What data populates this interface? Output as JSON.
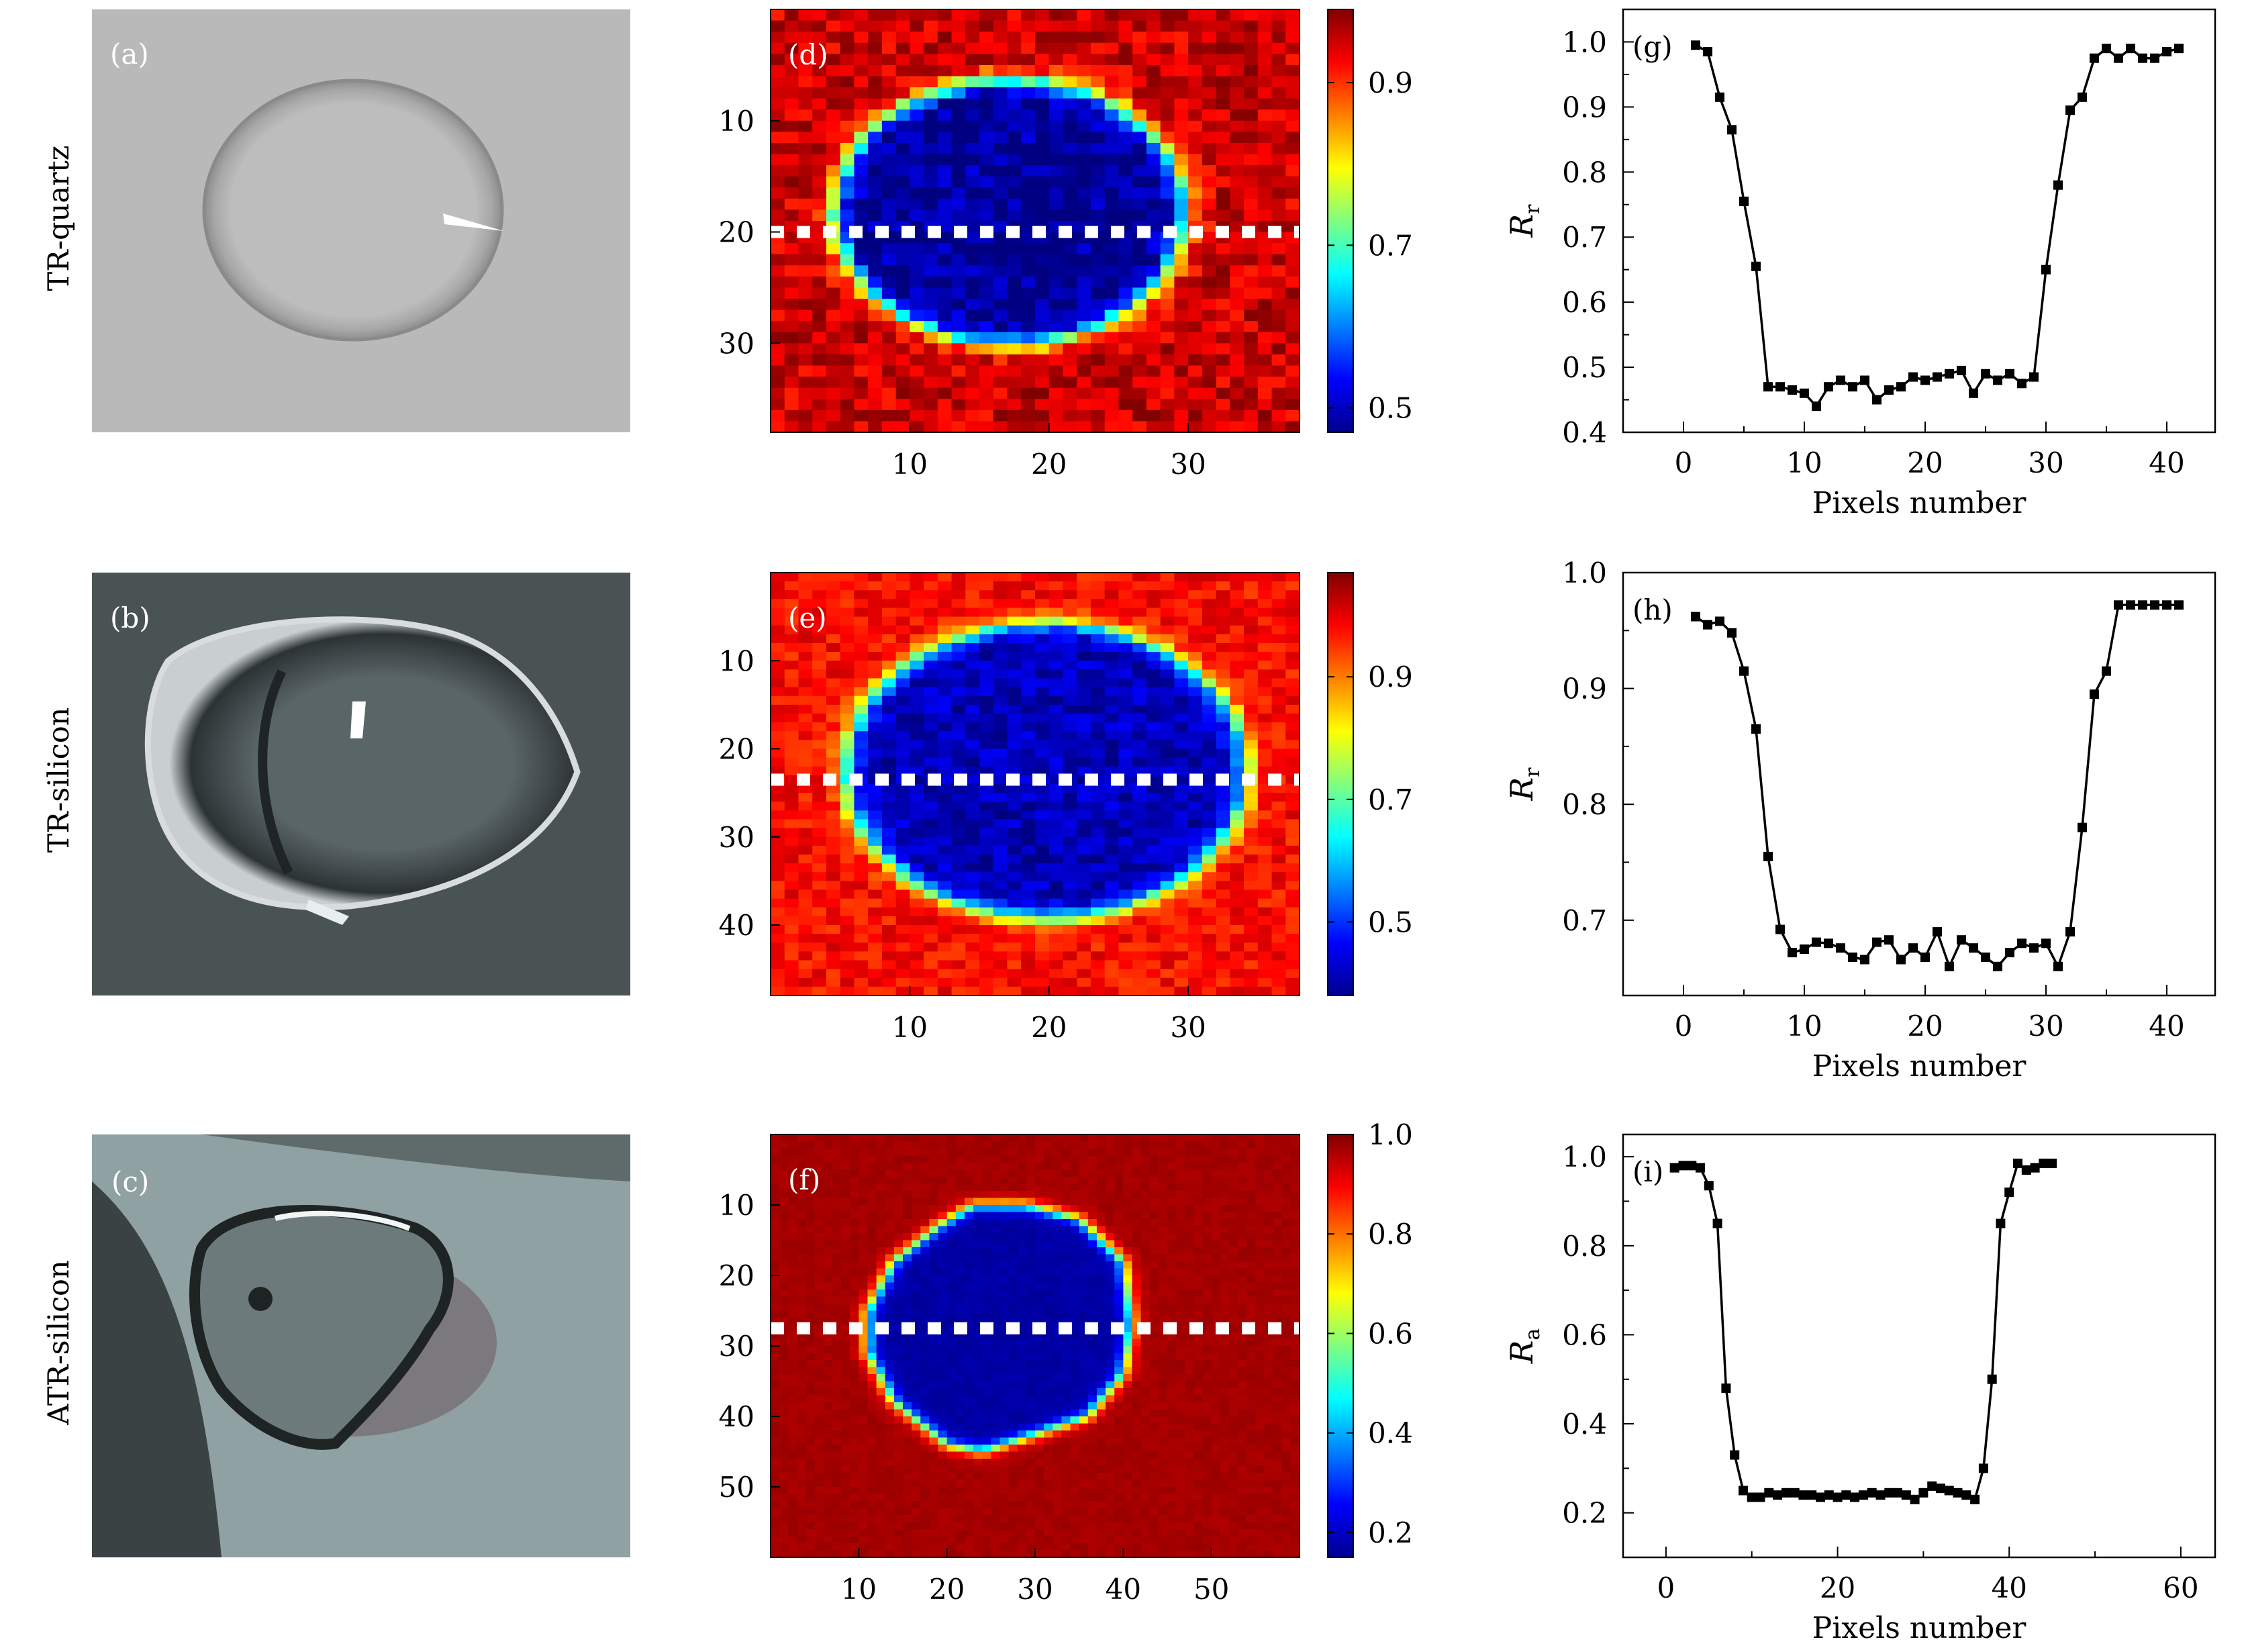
{
  "row_labels": [
    "TR-quartz",
    "TR-silicon",
    "ATR-silicon"
  ],
  "photo_panels": [
    {
      "label": "(a)",
      "surface": "light gray quartz",
      "drop": "flat transparent droplet"
    },
    {
      "label": "(b)",
      "surface": "dark gray silicon",
      "drop": "bright hemispherical droplet"
    },
    {
      "label": "(c)",
      "surface": "gray-green silicon",
      "drop": "droplet on curved prism"
    }
  ],
  "colors": {
    "map_high": "#ee2a0d",
    "map_low": "#0a23d8",
    "dash": "#ffffff",
    "line": "#000000"
  },
  "chart_data": [
    {
      "type": "heatmap",
      "label": "(d)",
      "xticks": [
        10,
        20,
        30
      ],
      "yticks": [
        10,
        20,
        30
      ],
      "xlim": [
        0,
        38
      ],
      "ylim": [
        0,
        38
      ],
      "colorbar": {
        "ticks": [
          0.5,
          0.7,
          0.9
        ],
        "range": [
          0.47,
          0.99
        ]
      },
      "region": {
        "shape": "ellipse",
        "cx": 17.2,
        "cy": 18.2,
        "rx": 12.6,
        "ry": 11.9,
        "inside": 0.48,
        "outside": 0.95
      },
      "dashed_line_row": 20
    },
    {
      "type": "heatmap",
      "label": "(e)",
      "xticks": [
        10,
        20,
        30
      ],
      "yticks": [
        10,
        20,
        30,
        40
      ],
      "xlim": [
        0,
        38
      ],
      "ylim": [
        0,
        48
      ],
      "colorbar": {
        "ticks": [
          0.5,
          0.7,
          0.9
        ],
        "range": [
          0.38,
          1.07
        ]
      },
      "region": {
        "shape": "ellipse",
        "cx": 19.8,
        "cy": 22.5,
        "rx": 14.4,
        "ry": 16.8,
        "inside": 0.42,
        "outside": 0.98
      },
      "dashed_line_row": 23.5
    },
    {
      "type": "heatmap",
      "label": "(f)",
      "xticks": [
        10,
        20,
        30,
        40,
        50
      ],
      "yticks": [
        10,
        20,
        30,
        40,
        50
      ],
      "xlim": [
        0,
        60
      ],
      "ylim": [
        0,
        60
      ],
      "colorbar": {
        "ticks": [
          0.2,
          0.4,
          0.6,
          0.8,
          1.0
        ],
        "range": [
          0.15,
          1.0
        ]
      },
      "region": {
        "shape": "polygon",
        "points": [
          [
            19,
            13
          ],
          [
            23,
            10
          ],
          [
            29,
            10
          ],
          [
            35,
            12
          ],
          [
            40,
            18
          ],
          [
            41,
            27
          ],
          [
            40,
            34
          ],
          [
            36,
            40
          ],
          [
            29,
            43
          ],
          [
            24,
            45
          ],
          [
            20,
            44
          ],
          [
            14,
            38
          ],
          [
            11,
            31
          ],
          [
            11,
            25
          ],
          [
            14,
            18
          ]
        ],
        "inside": 0.18,
        "outside": 0.97
      },
      "dashed_line_row": 27.5
    },
    {
      "type": "line",
      "label": "(g)",
      "xlabel": "Pixels number",
      "ylabel": "R",
      "ylabel_sub": "r",
      "xlim": [
        -5,
        44
      ],
      "ylim": [
        0.4,
        1.05
      ],
      "xticks": [
        0,
        10,
        20,
        30,
        40
      ],
      "yticks": [
        0.4,
        0.5,
        0.6,
        0.7,
        0.8,
        0.9,
        1.0
      ],
      "x": [
        1,
        2,
        3,
        4,
        5,
        6,
        7,
        8,
        9,
        10,
        11,
        12,
        13,
        14,
        15,
        16,
        17,
        18,
        19,
        20,
        21,
        22,
        23,
        24,
        25,
        26,
        27,
        28,
        29,
        30,
        31,
        32,
        33,
        34,
        35,
        36,
        37,
        38,
        39,
        40,
        41
      ],
      "y": [
        0.995,
        0.985,
        0.915,
        0.865,
        0.755,
        0.655,
        0.47,
        0.47,
        0.465,
        0.46,
        0.44,
        0.47,
        0.48,
        0.47,
        0.48,
        0.45,
        0.465,
        0.47,
        0.485,
        0.48,
        0.485,
        0.49,
        0.495,
        0.46,
        0.49,
        0.48,
        0.49,
        0.475,
        0.485,
        0.65,
        0.78,
        0.895,
        0.915,
        0.975,
        0.99,
        0.975,
        0.99,
        0.975,
        0.975,
        0.985,
        0.99
      ]
    },
    {
      "type": "line",
      "label": "(h)",
      "xlabel": "Pixels number",
      "ylabel": "R",
      "ylabel_sub": "r",
      "xlim": [
        -5,
        44
      ],
      "ylim": [
        0.635,
        1.0
      ],
      "xticks": [
        0,
        10,
        20,
        30,
        40
      ],
      "yticks": [
        0.7,
        0.8,
        0.9,
        1.0
      ],
      "x": [
        1,
        2,
        3,
        4,
        5,
        6,
        7,
        8,
        9,
        10,
        11,
        12,
        13,
        14,
        15,
        16,
        17,
        18,
        19,
        20,
        21,
        22,
        23,
        24,
        25,
        26,
        27,
        28,
        29,
        30,
        31,
        32,
        33,
        34,
        35,
        36,
        37,
        38,
        39,
        40,
        41
      ],
      "y": [
        0.962,
        0.955,
        0.958,
        0.948,
        0.915,
        0.865,
        0.755,
        0.692,
        0.672,
        0.675,
        0.681,
        0.68,
        0.676,
        0.668,
        0.666,
        0.681,
        0.683,
        0.666,
        0.676,
        0.668,
        0.69,
        0.66,
        0.683,
        0.676,
        0.668,
        0.66,
        0.672,
        0.68,
        0.676,
        0.68,
        0.66,
        0.69,
        0.78,
        0.895,
        0.915,
        0.972,
        0.972,
        0.972,
        0.972,
        0.972,
        0.972
      ]
    },
    {
      "type": "line",
      "label": "(i)",
      "xlabel": "Pixels number",
      "ylabel": "R",
      "ylabel_sub": "a",
      "xlim": [
        -5,
        64
      ],
      "ylim": [
        0.1,
        1.05
      ],
      "xticks": [
        0,
        20,
        40,
        60
      ],
      "yticks": [
        0.2,
        0.4,
        0.6,
        0.8,
        1.0
      ],
      "x": [
        1,
        2,
        3,
        4,
        5,
        6,
        7,
        8,
        9,
        10,
        11,
        12,
        13,
        14,
        15,
        16,
        17,
        18,
        19,
        20,
        21,
        22,
        23,
        24,
        25,
        26,
        27,
        28,
        29,
        30,
        31,
        32,
        33,
        34,
        35,
        36,
        37,
        38,
        39,
        40,
        41,
        42,
        43,
        44,
        45
      ],
      "y": [
        0.975,
        0.98,
        0.98,
        0.975,
        0.935,
        0.85,
        0.48,
        0.33,
        0.25,
        0.235,
        0.235,
        0.245,
        0.24,
        0.245,
        0.245,
        0.24,
        0.24,
        0.235,
        0.24,
        0.235,
        0.24,
        0.235,
        0.24,
        0.245,
        0.24,
        0.245,
        0.245,
        0.24,
        0.23,
        0.245,
        0.26,
        0.255,
        0.25,
        0.245,
        0.24,
        0.23,
        0.3,
        0.5,
        0.85,
        0.92,
        0.985,
        0.97,
        0.975,
        0.985,
        0.985
      ]
    }
  ]
}
